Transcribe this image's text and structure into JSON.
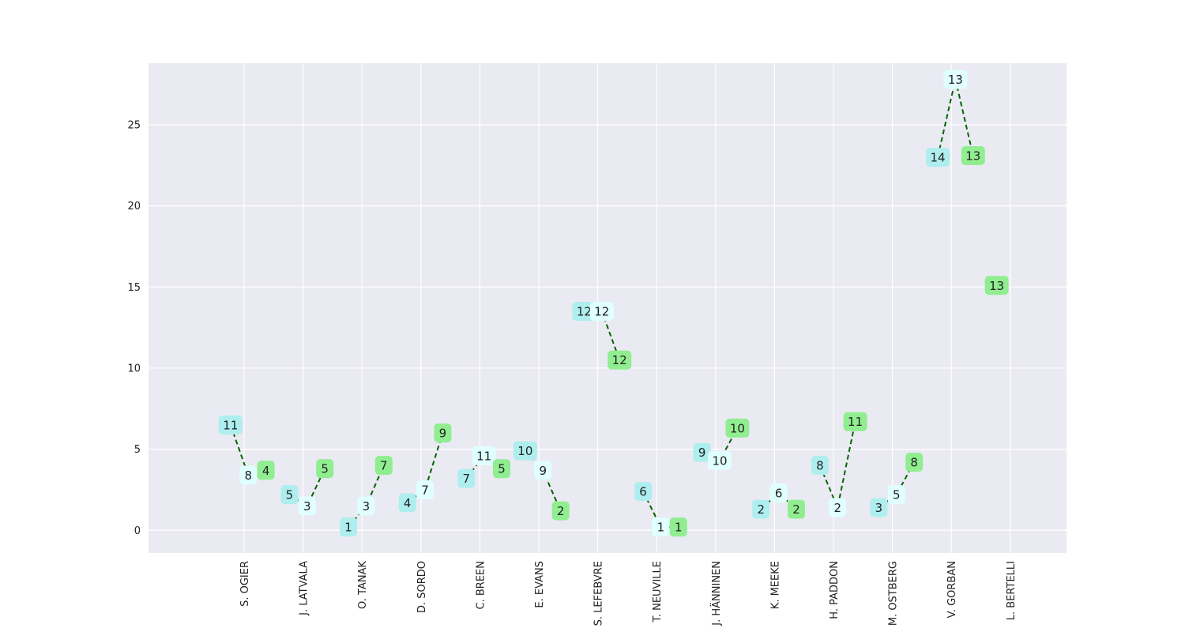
{
  "chart_data": {
    "type": "line",
    "title": "",
    "xlabel": "",
    "ylabel": "",
    "ylim": [
      -1.4,
      28.8
    ],
    "yticks": [
      0,
      5,
      10,
      15,
      20,
      25
    ],
    "grid": true,
    "drivers": [
      "S. OGIER",
      "J. LATVALA",
      "O. TANAK",
      "D. SORDO",
      "C. BREEN",
      "E. EVANS",
      "S. LEFEBVRE",
      "T. NEUVILLE",
      "J. HÄNNINEN",
      "K. MEEKE",
      "H. PADDON",
      "M. OSTBERG",
      "V. GORBAN",
      "L. BERTELLI"
    ],
    "colors": {
      "first": "#afeeee",
      "second": "#e0ffff",
      "third": "#90ee90",
      "line": "#006400",
      "plot_bg": "#eaeaf2",
      "grid": "#ffffff"
    },
    "groups": [
      {
        "driver": "S. OGIER",
        "points": [
          {
            "x": -0.23,
            "y": 6.5,
            "label": "11",
            "kind": "first"
          },
          {
            "x": 0.07,
            "y": 3.4,
            "label": "8",
            "kind": "second"
          },
          {
            "x": 0.37,
            "y": 3.7,
            "label": "4",
            "kind": "third"
          }
        ]
      },
      {
        "driver": "J. LATVALA",
        "points": [
          {
            "x": 0.77,
            "y": 2.2,
            "label": "5",
            "kind": "first"
          },
          {
            "x": 1.07,
            "y": 1.5,
            "label": "3",
            "kind": "second"
          },
          {
            "x": 1.37,
            "y": 3.8,
            "label": "5",
            "kind": "third"
          }
        ]
      },
      {
        "driver": "O. TANAK",
        "points": [
          {
            "x": 1.77,
            "y": 0.2,
            "label": "1",
            "kind": "first"
          },
          {
            "x": 2.07,
            "y": 1.5,
            "label": "3",
            "kind": "second"
          },
          {
            "x": 2.37,
            "y": 4.0,
            "label": "7",
            "kind": "third"
          }
        ]
      },
      {
        "driver": "D. SORDO",
        "points": [
          {
            "x": 2.77,
            "y": 1.7,
            "label": "4",
            "kind": "first"
          },
          {
            "x": 3.07,
            "y": 2.5,
            "label": "7",
            "kind": "second"
          },
          {
            "x": 3.37,
            "y": 6.0,
            "label": "9",
            "kind": "third"
          }
        ]
      },
      {
        "driver": "C. BREEN",
        "points": [
          {
            "x": 3.77,
            "y": 3.2,
            "label": "7",
            "kind": "first"
          },
          {
            "x": 4.07,
            "y": 4.6,
            "label": "11",
            "kind": "second"
          },
          {
            "x": 4.37,
            "y": 3.8,
            "label": "5",
            "kind": "third"
          }
        ]
      },
      {
        "driver": "E. EVANS",
        "points": [
          {
            "x": 4.77,
            "y": 4.9,
            "label": "10",
            "kind": "first"
          },
          {
            "x": 5.07,
            "y": 3.7,
            "label": "9",
            "kind": "second"
          },
          {
            "x": 5.37,
            "y": 1.2,
            "label": "2",
            "kind": "third"
          }
        ]
      },
      {
        "driver": "S. LEFEBVRE",
        "points": [
          {
            "x": 5.77,
            "y": 13.5,
            "label": "12",
            "kind": "first"
          },
          {
            "x": 6.07,
            "y": 13.5,
            "label": "12",
            "kind": "second"
          },
          {
            "x": 6.37,
            "y": 10.5,
            "label": "12",
            "kind": "third"
          }
        ]
      },
      {
        "driver": "T. NEUVILLE",
        "points": [
          {
            "x": 6.77,
            "y": 2.4,
            "label": "6",
            "kind": "first"
          },
          {
            "x": 7.07,
            "y": 0.2,
            "label": "1",
            "kind": "second"
          },
          {
            "x": 7.37,
            "y": 0.2,
            "label": "1",
            "kind": "third"
          }
        ]
      },
      {
        "driver": "J. HÄNNINEN",
        "points": [
          {
            "x": 7.77,
            "y": 4.8,
            "label": "9",
            "kind": "first"
          },
          {
            "x": 8.07,
            "y": 4.3,
            "label": "10",
            "kind": "second"
          },
          {
            "x": 8.37,
            "y": 6.3,
            "label": "10",
            "kind": "third"
          }
        ]
      },
      {
        "driver": "K. MEEKE",
        "points": [
          {
            "x": 8.77,
            "y": 1.3,
            "label": "2",
            "kind": "first"
          },
          {
            "x": 9.07,
            "y": 2.3,
            "label": "6",
            "kind": "second"
          },
          {
            "x": 9.37,
            "y": 1.3,
            "label": "2",
            "kind": "third"
          }
        ]
      },
      {
        "driver": "H. PADDON",
        "points": [
          {
            "x": 9.77,
            "y": 4.0,
            "label": "8",
            "kind": "first"
          },
          {
            "x": 10.07,
            "y": 1.4,
            "label": "2",
            "kind": "second"
          },
          {
            "x": 10.37,
            "y": 6.7,
            "label": "11",
            "kind": "third"
          }
        ]
      },
      {
        "driver": "M. OSTBERG",
        "points": [
          {
            "x": 10.77,
            "y": 1.4,
            "label": "3",
            "kind": "first"
          },
          {
            "x": 11.07,
            "y": 2.2,
            "label": "5",
            "kind": "second"
          },
          {
            "x": 11.37,
            "y": 4.2,
            "label": "8",
            "kind": "third"
          }
        ]
      },
      {
        "driver": "V. GORBAN",
        "points": [
          {
            "x": 11.77,
            "y": 23.0,
            "label": "14",
            "kind": "first"
          },
          {
            "x": 12.07,
            "y": 27.8,
            "label": "13",
            "kind": "second"
          },
          {
            "x": 12.37,
            "y": 23.1,
            "label": "13",
            "kind": "third"
          }
        ]
      },
      {
        "driver": "L. BERTELLI",
        "points": [
          {
            "x": 12.77,
            "y": 15.1,
            "label": "13",
            "kind": "third"
          }
        ]
      }
    ]
  }
}
